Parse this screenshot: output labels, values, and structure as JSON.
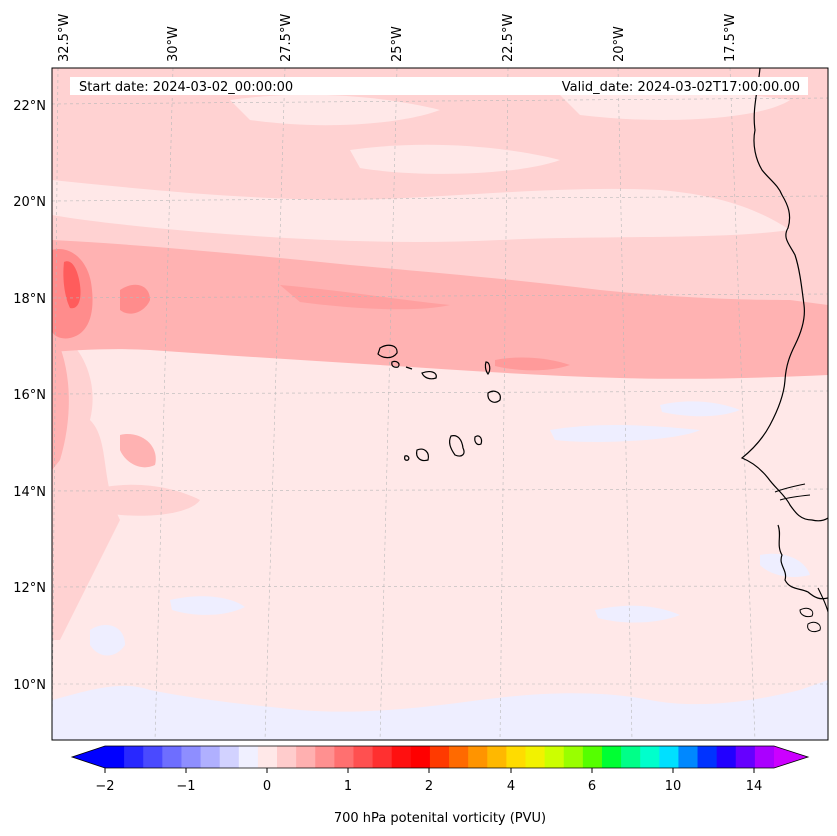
{
  "map": {
    "start_label": "Start date: 2024-03-02_00:00:00",
    "valid_label": "Valid_date: 2024-03-02T17:00:00.00",
    "lon_labels": [
      "32.5°W",
      "30°W",
      "27.5°W",
      "25°W",
      "22.5°W",
      "20°W",
      "17.5°W"
    ],
    "lat_labels": [
      "22°N",
      "20°N",
      "18°N",
      "16°N",
      "14°N",
      "12°N",
      "10°N"
    ]
  },
  "colorbar": {
    "title": "700 hPa potenital vorticity (PVU)",
    "tick_labels": [
      "−2",
      "−1",
      "0",
      "1",
      "2",
      "4",
      "6",
      "10",
      "14"
    ],
    "colors": [
      "#0000ff",
      "#2828ff",
      "#4a4aff",
      "#6e6eff",
      "#8e8eff",
      "#b0b0ff",
      "#d2d2ff",
      "#f0f0ff",
      "#ffe8e8",
      "#ffcccc",
      "#ffb0b0",
      "#ff9090",
      "#ff7070",
      "#ff5050",
      "#ff3030",
      "#ff1010",
      "#ff0000",
      "#ff3a00",
      "#ff6a00",
      "#ff9400",
      "#ffb800",
      "#ffdc00",
      "#f2f200",
      "#ccff00",
      "#99ff00",
      "#55ff00",
      "#00ff33",
      "#00ff88",
      "#00ffcc",
      "#00e0ff",
      "#0088ff",
      "#0033ff",
      "#2200ff",
      "#6600ff",
      "#aa00ff"
    ],
    "under_color": "#0000ff",
    "over_color": "#cc00ff"
  },
  "legend_colors": {
    "background": "#ffe8e8",
    "light_pink": "#ffd0d0",
    "mid_pink": "#ffb0b0",
    "strong_pink": "#ff8a8a",
    "red": "#ff5a5a",
    "lavender": "#eeeeff"
  }
}
